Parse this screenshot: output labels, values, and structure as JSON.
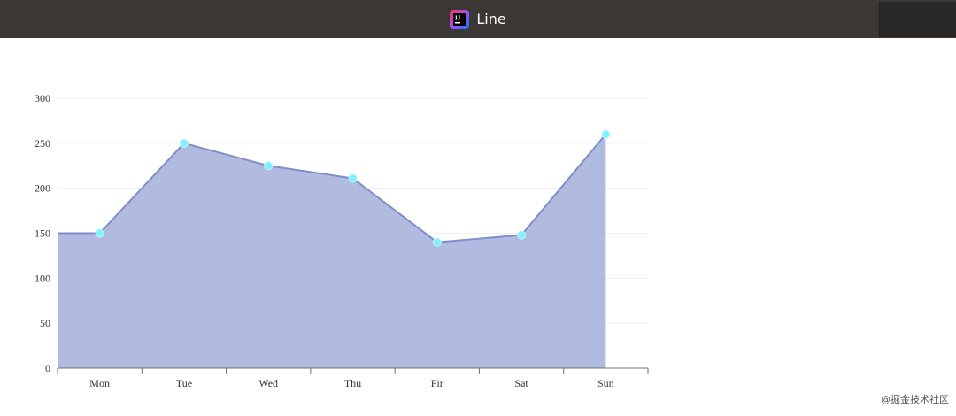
{
  "window": {
    "title": "Line",
    "icon": "intellij-idea-icon"
  },
  "watermark": "@掘金技术社区",
  "colors": {
    "area_fill": "#a3afda",
    "line": "#7f8dcb",
    "point": "#7ff0ff",
    "grid": "#eeeeee",
    "axis": "#6e7079",
    "label": "#333333",
    "titlebar": "#3a3735"
  },
  "chart_data": {
    "type": "area",
    "title": "",
    "xlabel": "",
    "ylabel": "",
    "categories": [
      "Mon",
      "Tue",
      "Wed",
      "Thu",
      "Fir",
      "Sat",
      "Sun"
    ],
    "values": [
      150,
      250,
      225,
      211,
      140,
      148,
      260
    ],
    "ylim": [
      0,
      300
    ],
    "yticks": [
      0,
      50,
      100,
      150,
      200,
      250,
      300
    ],
    "grid": true,
    "legend": "none"
  }
}
